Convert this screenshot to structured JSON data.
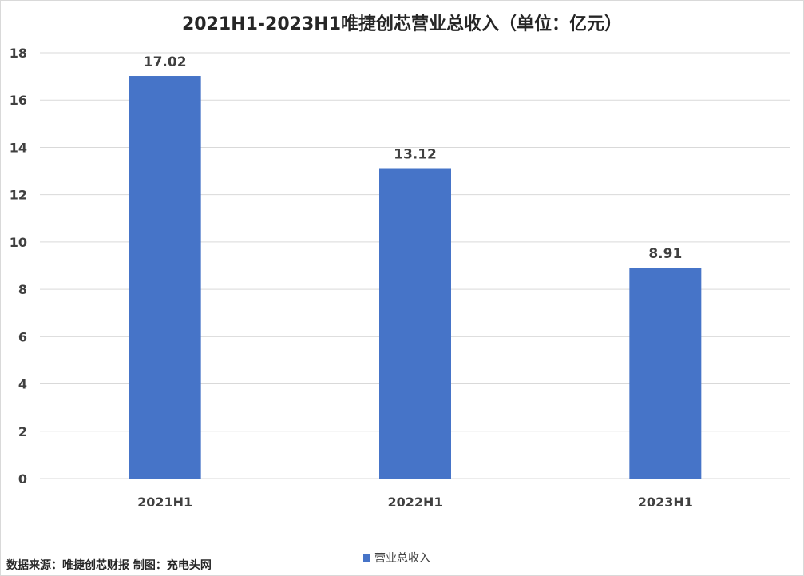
{
  "chart_data": {
    "type": "bar",
    "title": "2021H1-2023H1唯捷创芯营业总收入（单位：亿元）",
    "categories": [
      "2021H1",
      "2022H1",
      "2023H1"
    ],
    "series": [
      {
        "name": "营业总收入",
        "values": [
          17.02,
          13.12,
          8.91
        ]
      }
    ],
    "data_labels": [
      "17.02",
      "13.12",
      "8.91"
    ],
    "ylim": [
      0,
      18
    ],
    "yticks": [
      0,
      2,
      4,
      6,
      8,
      10,
      12,
      14,
      16,
      18
    ],
    "grid": true,
    "legend_position": "bottom",
    "colors": {
      "bar": "#4674C8",
      "grid": "#d9d9d9",
      "text": "#404040"
    }
  },
  "footer": {
    "source": "数据来源：唯捷创芯财报 制图：充电头网"
  }
}
